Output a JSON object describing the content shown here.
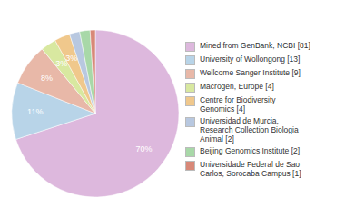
{
  "chart_data": {
    "type": "pie",
    "categories": [
      "Mined from GenBank, NCBI [81]",
      "University of Wollongong [13]",
      "Wellcome Sanger Institute [9]",
      "Macrogen, Europe [4]",
      "Centre for Biodiversity\nGenomics [4]",
      "Universidad de Murcia,\nResearch Collection Biologia\nAnimal [2]",
      "Beijing Genomics Institute [2]",
      "Universidade Federal de Sao\nCarlos, Sorocaba Campus [1]"
    ],
    "values": [
      70,
      11,
      8,
      3,
      3,
      2,
      2,
      1
    ],
    "value_labels": [
      "70%",
      "11%",
      "8%",
      "3%",
      "3%",
      null,
      null,
      null
    ],
    "colors": [
      "#ddb8dd",
      "#b8d4e8",
      "#e8b8a8",
      "#d8e8a0",
      "#f0c88c",
      "#b8c8e0",
      "#a8d8a8",
      "#d88878"
    ],
    "data_labels": true,
    "legend": "right"
  }
}
